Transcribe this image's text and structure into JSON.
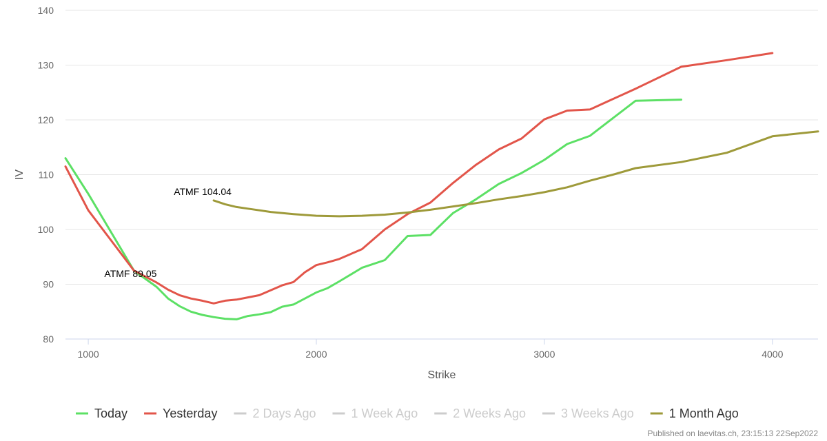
{
  "chart_data": {
    "type": "line",
    "title": "",
    "xlabel": "Strike",
    "ylabel": "IV",
    "xlim": [
      900,
      4200
    ],
    "ylim": [
      80,
      140
    ],
    "x_ticks": [
      1000,
      2000,
      3000,
      4000
    ],
    "y_ticks": [
      80,
      90,
      100,
      110,
      120,
      130,
      140
    ],
    "grid": "horizontal",
    "legend_position": "bottom",
    "series": [
      {
        "name": "Today",
        "color": "#5ce065",
        "visible": true,
        "points": [
          [
            900,
            113
          ],
          [
            1000,
            106.5
          ],
          [
            1100,
            99.5
          ],
          [
            1200,
            92.5
          ],
          [
            1300,
            89.5
          ],
          [
            1350,
            87.4
          ],
          [
            1400,
            86
          ],
          [
            1450,
            85
          ],
          [
            1500,
            84.4
          ],
          [
            1550,
            84
          ],
          [
            1600,
            83.7
          ],
          [
            1650,
            83.6
          ],
          [
            1700,
            84.2
          ],
          [
            1750,
            84.5
          ],
          [
            1800,
            84.9
          ],
          [
            1850,
            85.9
          ],
          [
            1900,
            86.3
          ],
          [
            2000,
            88.5
          ],
          [
            2050,
            89.3
          ],
          [
            2100,
            90.5
          ],
          [
            2200,
            93
          ],
          [
            2300,
            94.4
          ],
          [
            2400,
            98.8
          ],
          [
            2500,
            99
          ],
          [
            2600,
            103
          ],
          [
            2700,
            105.5
          ],
          [
            2800,
            108.3
          ],
          [
            2900,
            110.3
          ],
          [
            3000,
            112.7
          ],
          [
            3100,
            115.6
          ],
          [
            3200,
            117.1
          ],
          [
            3300,
            120.3
          ],
          [
            3400,
            123.5
          ],
          [
            3600,
            123.7
          ]
        ]
      },
      {
        "name": "Yesterday",
        "color": "#e2554a",
        "visible": true,
        "points": [
          [
            900,
            111.5
          ],
          [
            1000,
            103.5
          ],
          [
            1100,
            98
          ],
          [
            1200,
            92.5
          ],
          [
            1300,
            90.3
          ],
          [
            1350,
            89
          ],
          [
            1400,
            88
          ],
          [
            1450,
            87.4
          ],
          [
            1500,
            87
          ],
          [
            1550,
            86.5
          ],
          [
            1600,
            87
          ],
          [
            1650,
            87.2
          ],
          [
            1700,
            87.6
          ],
          [
            1750,
            88
          ],
          [
            1800,
            88.9
          ],
          [
            1850,
            89.8
          ],
          [
            1900,
            90.4
          ],
          [
            1950,
            92.2
          ],
          [
            2000,
            93.5
          ],
          [
            2050,
            94
          ],
          [
            2100,
            94.6
          ],
          [
            2200,
            96.4
          ],
          [
            2300,
            100
          ],
          [
            2400,
            102.8
          ],
          [
            2500,
            104.9
          ],
          [
            2600,
            108.5
          ],
          [
            2700,
            111.8
          ],
          [
            2800,
            114.6
          ],
          [
            2900,
            116.6
          ],
          [
            3000,
            120.1
          ],
          [
            3100,
            121.7
          ],
          [
            3200,
            121.9
          ],
          [
            3300,
            123.8
          ],
          [
            3400,
            125.7
          ],
          [
            3500,
            127.7
          ],
          [
            3600,
            129.7
          ],
          [
            3800,
            130.9
          ],
          [
            4000,
            132.2
          ]
        ]
      },
      {
        "name": "2 Days Ago",
        "color": "#cccccc",
        "visible": false,
        "points": []
      },
      {
        "name": "1 Week Ago",
        "color": "#cccccc",
        "visible": false,
        "points": []
      },
      {
        "name": "2 Weeks Ago",
        "color": "#cccccc",
        "visible": false,
        "points": []
      },
      {
        "name": "3 Weeks Ago",
        "color": "#cccccc",
        "visible": false,
        "points": []
      },
      {
        "name": "1 Month Ago",
        "color": "#9e9a3a",
        "visible": true,
        "points": [
          [
            1550,
            105.3
          ],
          [
            1600,
            104.6
          ],
          [
            1650,
            104.1
          ],
          [
            1700,
            103.8
          ],
          [
            1800,
            103.2
          ],
          [
            1900,
            102.8
          ],
          [
            2000,
            102.5
          ],
          [
            2100,
            102.4
          ],
          [
            2200,
            102.5
          ],
          [
            2300,
            102.7
          ],
          [
            2400,
            103.1
          ],
          [
            2500,
            103.6
          ],
          [
            2600,
            104.2
          ],
          [
            2700,
            104.8
          ],
          [
            2800,
            105.5
          ],
          [
            2900,
            106.1
          ],
          [
            3000,
            106.8
          ],
          [
            3100,
            107.7
          ],
          [
            3200,
            108.9
          ],
          [
            3300,
            110
          ],
          [
            3400,
            111.2
          ],
          [
            3600,
            112.3
          ],
          [
            3800,
            114
          ],
          [
            4000,
            117
          ],
          [
            4200,
            117.9
          ]
        ]
      }
    ],
    "annotations": [
      {
        "text": "ATMF 89.05",
        "x": 1270,
        "y": 90.3
      },
      {
        "text": "ATMF 104.04",
        "x": 1550,
        "y": 105.3
      }
    ]
  },
  "footer": "Published on laevitas.ch, 23:15:13 22Sep2022"
}
